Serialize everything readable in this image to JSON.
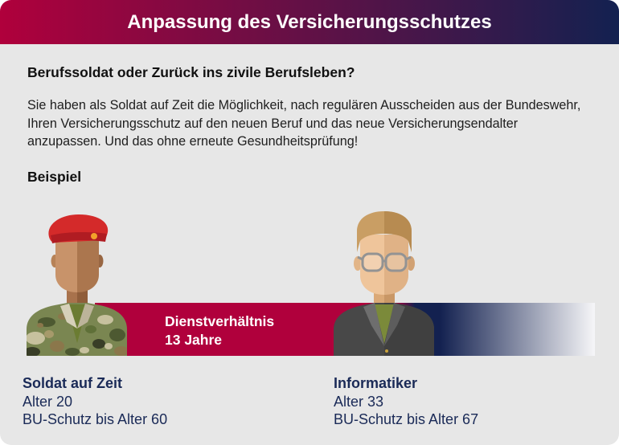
{
  "header": {
    "title": "Anpassung des Versicherungsschutzes"
  },
  "intro": {
    "heading": "Berufssoldat oder Zurück ins zivile Berufsleben?",
    "paragraph": "Sie haben als Soldat auf Zeit die Möglichkeit, nach regulären Ausscheiden aus der Bundeswehr,\nIhren Versicherungsschutz auf den neuen Beruf und das neue Versicherungsendalter\nanzupassen. Und das ohne erneute Gesundheitsprüfung!"
  },
  "example": {
    "heading": "Beispiel",
    "bar": {
      "label": "Dienstverhältnis",
      "duration": "13 Jahre"
    },
    "before": {
      "icon": "soldier-illustration",
      "title": "Soldat auf Zeit",
      "age": "Alter 20",
      "coverage": "BU-Schutz bis Alter 60"
    },
    "after": {
      "icon": "it-professional-illustration",
      "title": "Informatiker",
      "age": "Alter 33",
      "coverage": "BU-Schutz bis Alter 67"
    }
  },
  "colors": {
    "crimson": "#b0003c",
    "navy": "#132150",
    "card_background": "#e7e7e7",
    "profile_text": "#1a2a57",
    "beret": "#d42a2a"
  }
}
